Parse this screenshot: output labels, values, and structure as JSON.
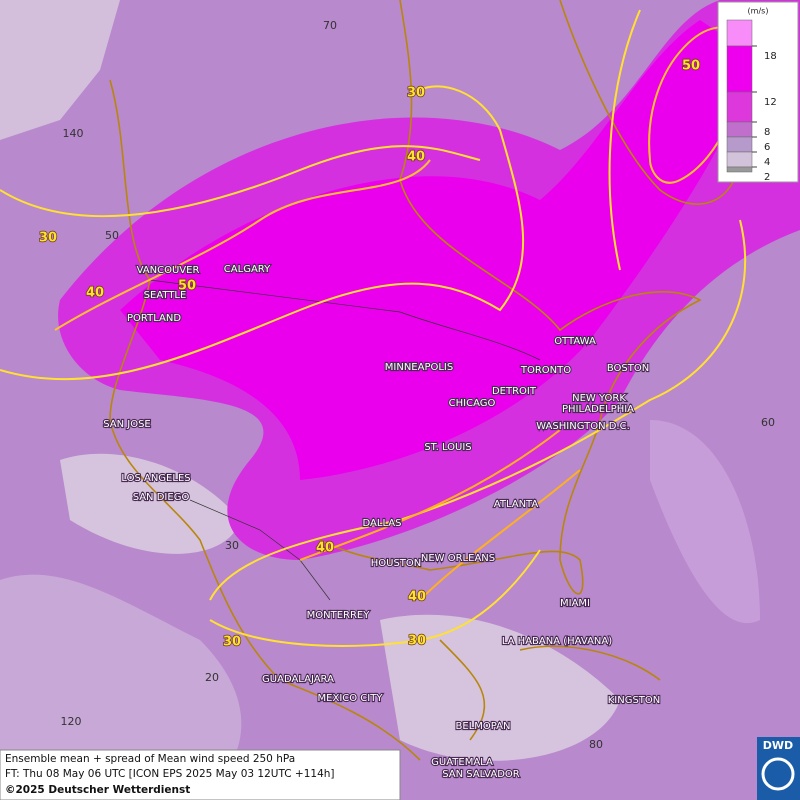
{
  "map": {
    "cities": [
      "VANCOUVER",
      "CALGARY",
      "SEATTLE",
      "PORTLAND",
      "MINNEAPOLIS",
      "TORONTO",
      "OTTAWA",
      "DETROIT",
      "CHICAGO",
      "BOSTON",
      "NEW YORK",
      "PHILADELPHIA",
      "WASHINGTON D.C.",
      "ST. LOUIS",
      "SAN JOSE",
      "LOS ANGELES",
      "SAN DIEGO",
      "ATLANTA",
      "DALLAS",
      "HOUSTON",
      "NEW ORLEANS",
      "MIAMI",
      "MONTERREY",
      "LA HABANA (HAVANA)",
      "GUADALAJARA",
      "MEXICO CITY",
      "KINGSTON",
      "BELMOPAN",
      "GUATEMALA",
      "SAN SALVADOR"
    ],
    "contour_labels": [
      "30",
      "40",
      "50",
      "30",
      "40",
      "50",
      "40",
      "40",
      "30",
      "30"
    ],
    "grid_labels": [
      "70",
      "140",
      "50",
      "60",
      "30",
      "20",
      "120",
      "80"
    ]
  },
  "legend": {
    "unit": "(m/s)",
    "ticks": [
      18,
      12,
      8,
      6,
      4,
      2
    ]
  },
  "footer": {
    "line1": "Ensemble mean + spread of Mean wind speed 250 hPa",
    "line2": "FT: Thu 08 May 06 UTC [ICON EPS 2025 May 03 12UTC +114h]",
    "line3": "©2025 Deutscher Wetterdienst"
  },
  "logo": "DWD"
}
